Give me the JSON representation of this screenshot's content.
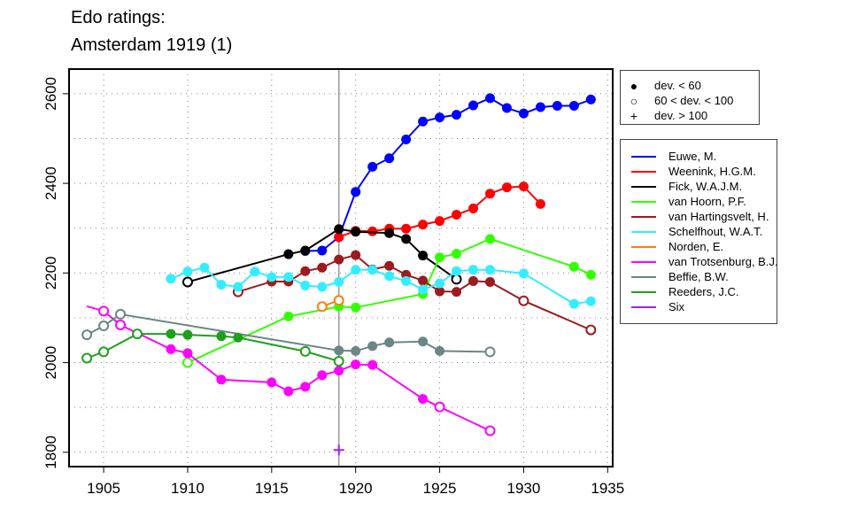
{
  "title_line1": "Edo ratings:",
  "title_line2": "Amsterdam 1919 (1)",
  "marker_legend": [
    {
      "symbol": "filled-circle",
      "label": "dev. < 60"
    },
    {
      "symbol": "open-circle",
      "label": "60 < dev. < 100"
    },
    {
      "symbol": "plus",
      "label": "dev. > 100"
    }
  ],
  "chart_data": {
    "type": "line",
    "title": "Edo ratings: Amsterdam 1919 (1)",
    "xlabel": "",
    "ylabel": "",
    "xlim": [
      1902.94,
      1935.3
    ],
    "ylim": [
      1768,
      2655
    ],
    "xticks": [
      1905,
      1910,
      1915,
      1920,
      1925,
      1930,
      1935
    ],
    "yticks": [
      1800,
      2000,
      2200,
      2400,
      2600
    ],
    "grid": true,
    "highlight_year": 1919,
    "legend_placement": "right",
    "point_format": "[year, rating, marker: f=filled (dev<60), o=open (60<dev<100), p=plus (dev>100), n=none]",
    "series": [
      {
        "name": "Euwe, M.",
        "color": "#0000FF",
        "points": [
          [
            1917,
            2249,
            "f"
          ],
          [
            1918,
            2250,
            "f"
          ],
          [
            1919,
            2280,
            "f"
          ],
          [
            1920,
            2381,
            "f"
          ],
          [
            1921,
            2437,
            "f"
          ],
          [
            1922,
            2456,
            "f"
          ],
          [
            1923,
            2498,
            "f"
          ],
          [
            1924,
            2538,
            "f"
          ],
          [
            1925,
            2547,
            "f"
          ],
          [
            1926,
            2553,
            "f"
          ],
          [
            1927,
            2574,
            "f"
          ],
          [
            1928,
            2590,
            "f"
          ],
          [
            1929,
            2568,
            "f"
          ],
          [
            1930,
            2556,
            "f"
          ],
          [
            1931,
            2570,
            "f"
          ],
          [
            1932,
            2573,
            "f"
          ],
          [
            1933,
            2573,
            "f"
          ],
          [
            1934,
            2587,
            "f"
          ]
        ]
      },
      {
        "name": "Weenink, H.G.M.",
        "color": "#FF0000",
        "points": [
          [
            1919,
            2280,
            "f"
          ],
          [
            1920,
            2294,
            "f"
          ],
          [
            1921,
            2293,
            "f"
          ],
          [
            1922,
            2299,
            "f"
          ],
          [
            1923,
            2299,
            "f"
          ],
          [
            1924,
            2308,
            "f"
          ],
          [
            1925,
            2316,
            "f"
          ],
          [
            1926,
            2330,
            "f"
          ],
          [
            1927,
            2344,
            "f"
          ],
          [
            1928,
            2377,
            "f"
          ],
          [
            1929,
            2391,
            "f"
          ],
          [
            1930,
            2393,
            "f"
          ],
          [
            1931,
            2354,
            "f"
          ]
        ]
      },
      {
        "name": "Fick, W.A.J.M.",
        "color": "#000000",
        "points": [
          [
            1910,
            2180,
            "o"
          ],
          [
            1916,
            2242,
            "f"
          ],
          [
            1917,
            2250,
            "f"
          ],
          [
            1919,
            2298,
            "f"
          ],
          [
            1920,
            2292,
            "f"
          ],
          [
            1922,
            2289,
            "f"
          ],
          [
            1923,
            2276,
            "f"
          ],
          [
            1924,
            2239,
            "f"
          ],
          [
            1926,
            2186,
            "o"
          ]
        ]
      },
      {
        "name": "van Hoorn, P.F.",
        "color": "#33FF00",
        "points": [
          [
            1910,
            2000,
            "o"
          ],
          [
            1916,
            2103,
            "f"
          ],
          [
            1919,
            2125,
            "f"
          ],
          [
            1920,
            2123,
            "f"
          ],
          [
            1924,
            2153,
            "f"
          ],
          [
            1925,
            2235,
            "f"
          ],
          [
            1926,
            2243,
            "f"
          ],
          [
            1928,
            2276,
            "f"
          ],
          [
            1933,
            2214,
            "f"
          ],
          [
            1934,
            2196,
            "f"
          ]
        ]
      },
      {
        "name": "van Hartingsvelt, H.",
        "color": "#9B1B1E",
        "points": [
          [
            1913,
            2158,
            "o"
          ],
          [
            1915,
            2181,
            "f"
          ],
          [
            1916,
            2181,
            "f"
          ],
          [
            1917,
            2204,
            "f"
          ],
          [
            1918,
            2212,
            "f"
          ],
          [
            1919,
            2230,
            "f"
          ],
          [
            1920,
            2240,
            "f"
          ],
          [
            1921,
            2208,
            "f"
          ],
          [
            1922,
            2216,
            "f"
          ],
          [
            1923,
            2196,
            "f"
          ],
          [
            1924,
            2183,
            "f"
          ],
          [
            1925,
            2159,
            "f"
          ],
          [
            1926,
            2158,
            "f"
          ],
          [
            1927,
            2182,
            "f"
          ],
          [
            1928,
            2180,
            "f"
          ],
          [
            1930,
            2138,
            "o"
          ],
          [
            1934,
            2073,
            "o"
          ]
        ]
      },
      {
        "name": "Schelfhout, W.A.T.",
        "color": "#33EEFF",
        "points": [
          [
            1909,
            2187,
            "f"
          ],
          [
            1910,
            2203,
            "f"
          ],
          [
            1911,
            2212,
            "f"
          ],
          [
            1912,
            2174,
            "f"
          ],
          [
            1913,
            2169,
            "f"
          ],
          [
            1914,
            2203,
            "f"
          ],
          [
            1915,
            2191,
            "f"
          ],
          [
            1916,
            2191,
            "f"
          ],
          [
            1917,
            2172,
            "f"
          ],
          [
            1918,
            2169,
            "f"
          ],
          [
            1919,
            2180,
            "f"
          ],
          [
            1920,
            2207,
            "f"
          ],
          [
            1921,
            2207,
            "f"
          ],
          [
            1922,
            2193,
            "f"
          ],
          [
            1923,
            2182,
            "f"
          ],
          [
            1924,
            2163,
            "f"
          ],
          [
            1925,
            2177,
            "f"
          ],
          [
            1926,
            2204,
            "f"
          ],
          [
            1927,
            2207,
            "f"
          ],
          [
            1928,
            2207,
            "f"
          ],
          [
            1930,
            2199,
            "f"
          ],
          [
            1933,
            2131,
            "f"
          ],
          [
            1934,
            2137,
            "f"
          ]
        ]
      },
      {
        "name": "Norden, E.",
        "color": "#FF7F00",
        "points": [
          [
            1918,
            2125,
            "o"
          ],
          [
            1919,
            2139,
            "o"
          ]
        ]
      },
      {
        "name": "van Trotsenburg, B.J.",
        "color": "#FF00FF",
        "points": [
          [
            1904,
            2126,
            "n"
          ],
          [
            1905,
            2115,
            "o"
          ],
          [
            1906,
            2084,
            "o"
          ],
          [
            1909,
            2030,
            "f"
          ],
          [
            1910,
            2021,
            "f"
          ],
          [
            1912,
            1962,
            "f"
          ],
          [
            1915,
            1956,
            "f"
          ],
          [
            1916,
            1936,
            "f"
          ],
          [
            1917,
            1946,
            "f"
          ],
          [
            1918,
            1972,
            "f"
          ],
          [
            1919,
            1982,
            "f"
          ],
          [
            1920,
            1996,
            "f"
          ],
          [
            1921,
            1995,
            "f"
          ],
          [
            1924,
            1919,
            "f"
          ],
          [
            1925,
            1901,
            "o"
          ],
          [
            1928,
            1848,
            "o"
          ]
        ]
      },
      {
        "name": "Beffie, B.W.",
        "color": "#6A8686",
        "points": [
          [
            1904,
            2062,
            "o"
          ],
          [
            1905,
            2082,
            "o"
          ],
          [
            1906,
            2108,
            "o"
          ],
          [
            1919,
            2027,
            "f"
          ],
          [
            1920,
            2026,
            "f"
          ],
          [
            1921,
            2037,
            "f"
          ],
          [
            1922,
            2045,
            "f"
          ],
          [
            1924,
            2047,
            "f"
          ],
          [
            1925,
            2026,
            "f"
          ],
          [
            1928,
            2024,
            "o"
          ]
        ]
      },
      {
        "name": "Reeders, J.C.",
        "color": "#1EA01E",
        "points": [
          [
            1904,
            2010,
            "o"
          ],
          [
            1905,
            2024,
            "o"
          ],
          [
            1907,
            2064,
            "o"
          ],
          [
            1909,
            2064,
            "f"
          ],
          [
            1910,
            2062,
            "f"
          ],
          [
            1912,
            2059,
            "f"
          ],
          [
            1913,
            2056,
            "f"
          ],
          [
            1917,
            2025,
            "o"
          ],
          [
            1919,
            2003,
            "o"
          ]
        ]
      },
      {
        "name": "Six",
        "color": "#A020F0",
        "points": [
          [
            1919,
            1805,
            "p"
          ]
        ]
      }
    ]
  }
}
